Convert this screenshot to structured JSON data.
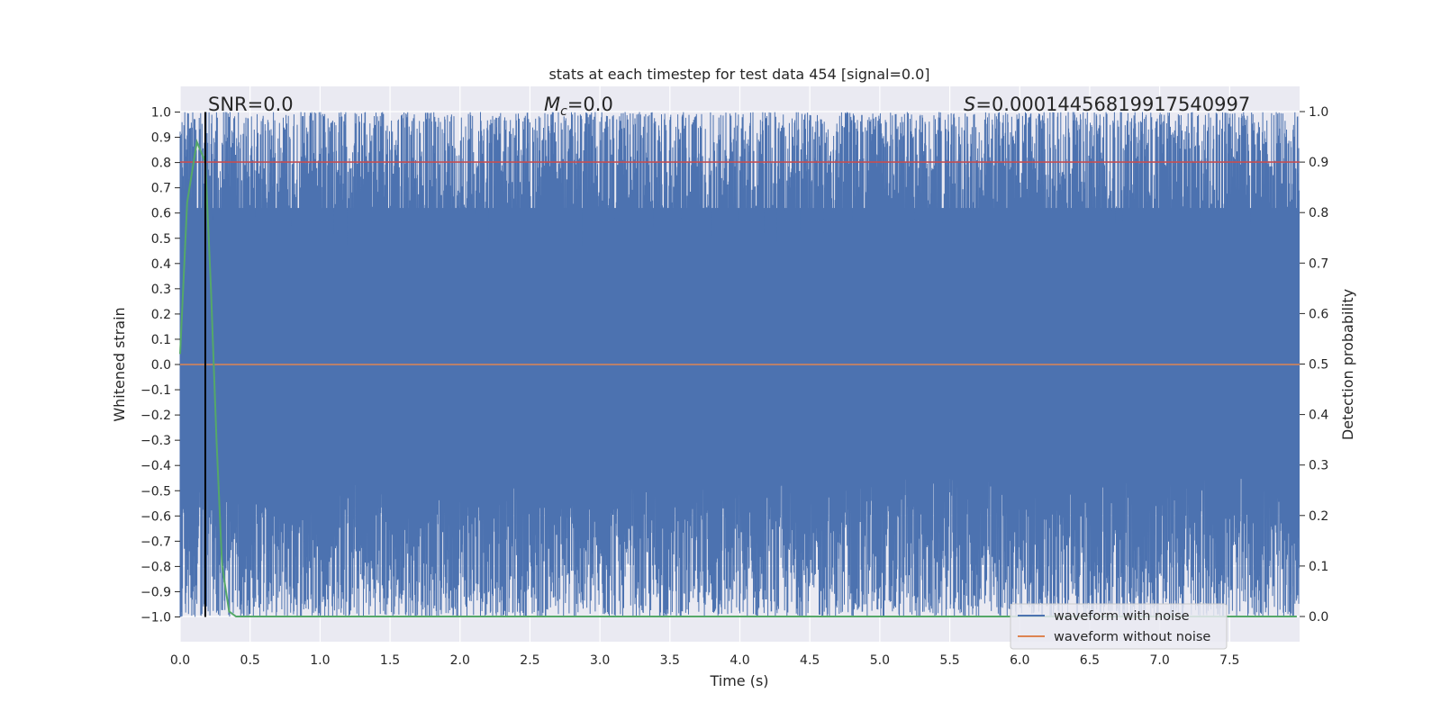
{
  "chart_data": {
    "type": "line",
    "title": "stats at each timestep for test data 454 [signal=0.0]",
    "xlabel": "Time (s)",
    "ylabel": "Whitened strain",
    "y2label": "Detection probability",
    "xlim": [
      0.0,
      8.0
    ],
    "ylim": [
      -1.1,
      1.1
    ],
    "y2lim": [
      -0.05,
      1.05
    ],
    "x_ticks": [
      "0.0",
      "0.5",
      "1.0",
      "1.5",
      "2.0",
      "2.5",
      "3.0",
      "3.5",
      "4.0",
      "4.5",
      "5.0",
      "5.5",
      "6.0",
      "6.5",
      "7.0",
      "7.5"
    ],
    "y_ticks": [
      "1.0",
      "0.9",
      "0.8",
      "0.7",
      "0.6",
      "0.5",
      "0.4",
      "0.3",
      "0.2",
      "0.1",
      "0.0",
      "−0.1",
      "−0.2",
      "−0.3",
      "−0.4",
      "−0.5",
      "−0.6",
      "−0.7",
      "−0.8",
      "−0.9",
      "−1.0"
    ],
    "y2_ticks": [
      "1.0",
      "0.9",
      "0.8",
      "0.7",
      "0.6",
      "0.5",
      "0.4",
      "0.3",
      "0.2",
      "0.1",
      "0.0"
    ],
    "grid": true,
    "legend_placement": "lower-right",
    "annotations": {
      "snr": "SNR=0.0",
      "mc_symbol": "M",
      "mc_sub": "c",
      "mc_value": "=0.0",
      "s_symbol": "S",
      "s_value": "=0.00014456819917540997"
    },
    "series": [
      {
        "name": "waveform with noise",
        "color": "#4c72b0",
        "description": "noisy whitened strain oscillating densely between about -1.0 and 1.0 over 0-8 s",
        "range": [
          -1.0,
          1.0
        ]
      },
      {
        "name": "waveform without noise",
        "color": "#dd8452",
        "values_y": 0.0
      },
      {
        "axis": "right",
        "color": "#55a868",
        "x": [
          0.0,
          0.05,
          0.12,
          0.18,
          0.22,
          0.26,
          0.3,
          0.35,
          0.4,
          7.98
        ],
        "y": [
          0.52,
          0.82,
          0.94,
          0.9,
          0.65,
          0.35,
          0.1,
          0.01,
          0.0,
          0.0
        ]
      },
      {
        "color": "#c44e52",
        "axis": "right",
        "values_y": 0.9
      },
      {
        "color": "#000000",
        "type": "vline",
        "x": 0.18
      }
    ]
  },
  "legend": {
    "items": [
      {
        "label": "waveform with noise",
        "color": "#4c72b0"
      },
      {
        "label": "waveform without noise",
        "color": "#dd8452"
      }
    ]
  },
  "colors": {
    "plot_background": "#eaeaf2",
    "grid": "#ffffff",
    "noise": "#4c72b0",
    "clean": "#dd8452",
    "probability": "#55a868",
    "threshold": "#c44e52",
    "marker": "#000000"
  }
}
